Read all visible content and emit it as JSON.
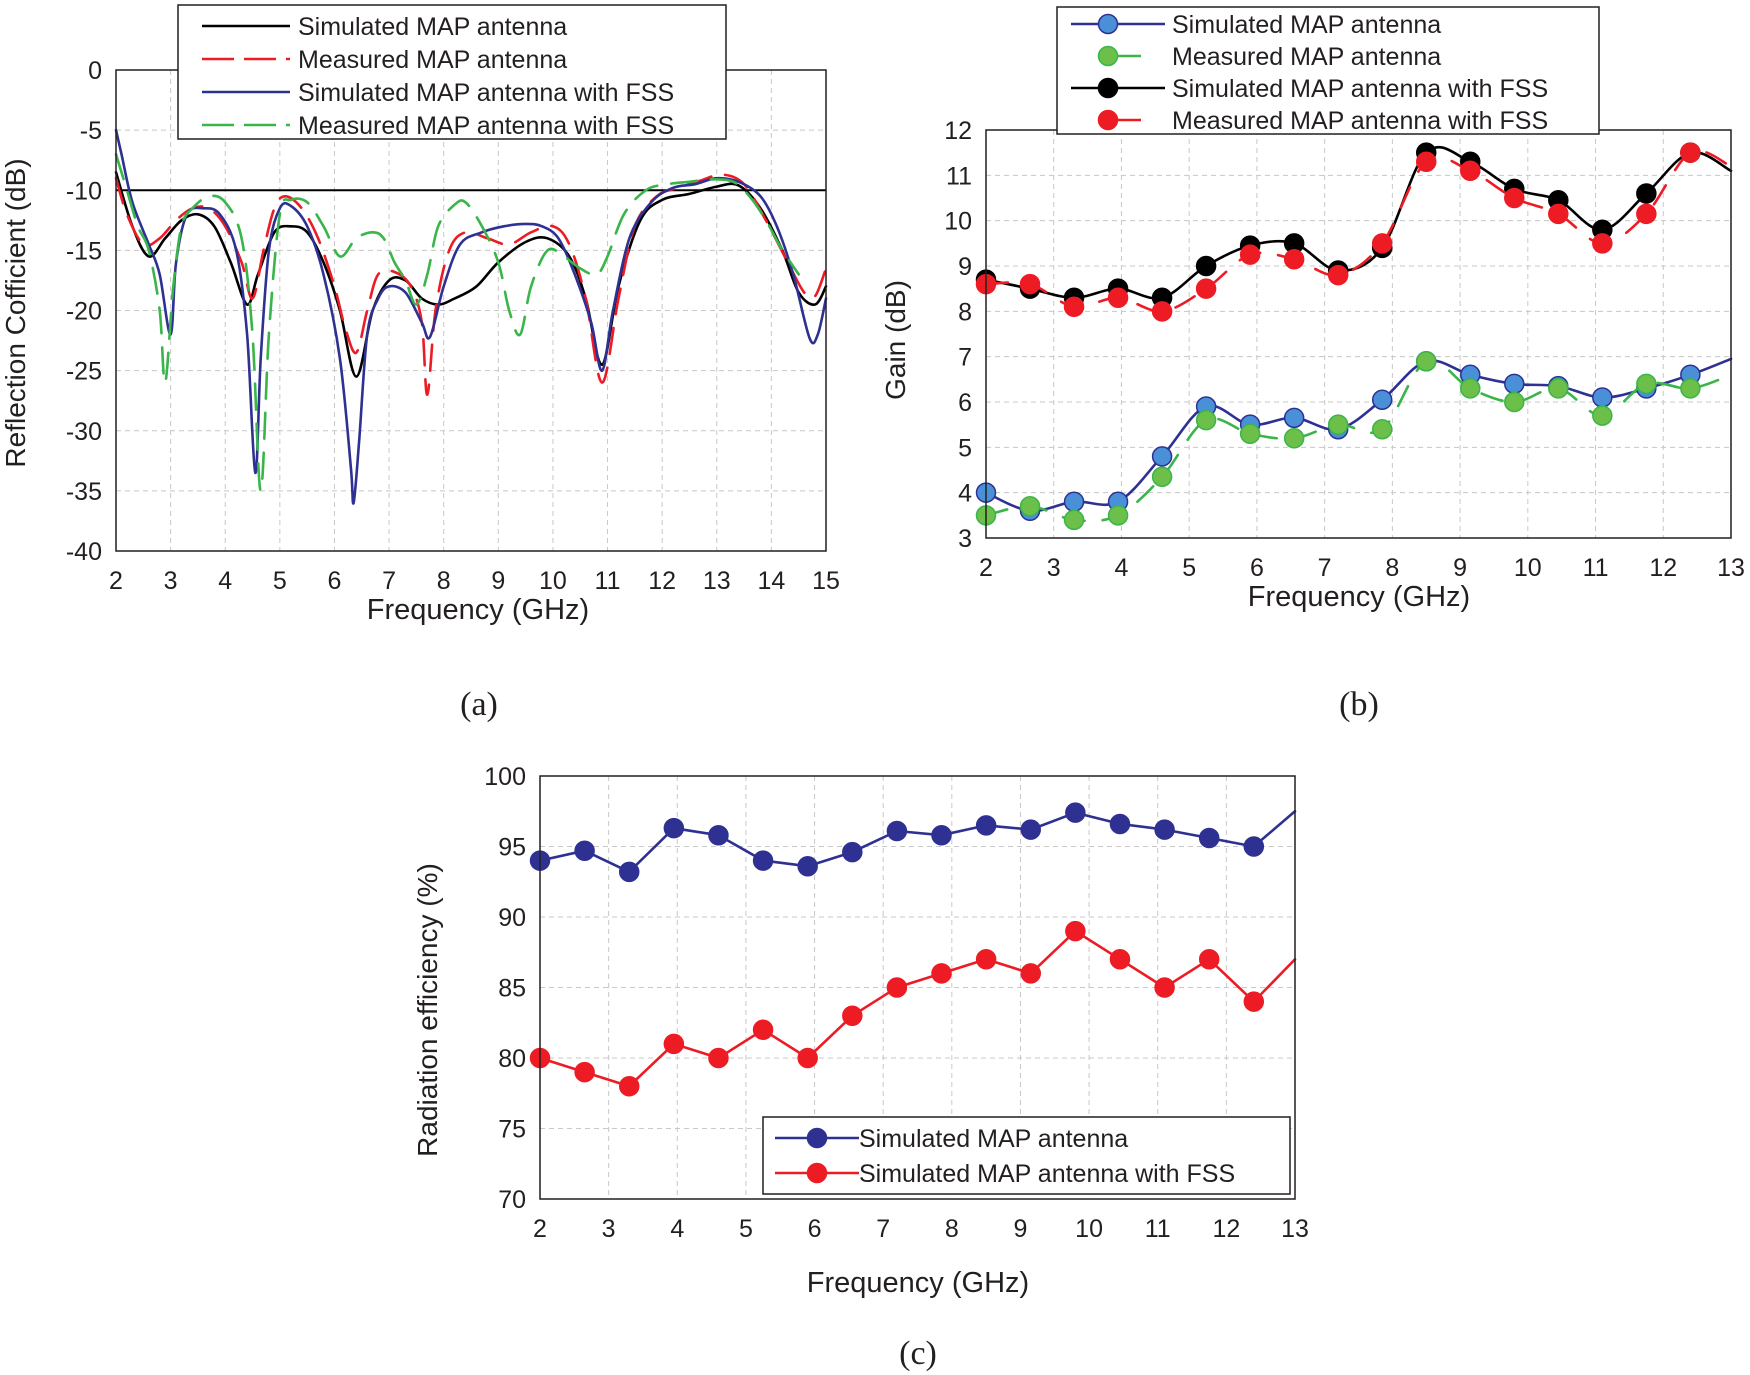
{
  "chart_data": [
    {
      "panel": "(a)",
      "type": "line",
      "title": "",
      "xlabel": "Frequency (GHz)",
      "ylabel": "Reflection Cofficient (dB)",
      "xlim": [
        2,
        15
      ],
      "ylim": [
        -40,
        0
      ],
      "xticks": [
        2,
        3,
        4,
        5,
        6,
        7,
        8,
        9,
        10,
        11,
        12,
        13,
        14,
        15
      ],
      "yticks": [
        0,
        -5,
        -10,
        -15,
        -20,
        -25,
        -30,
        -35,
        -40
      ],
      "grid": true,
      "legend_position": "top-center",
      "reference_line": {
        "y": -10,
        "color": "#000000"
      },
      "series": [
        {
          "name": "Simulated MAP antenna",
          "color": "#000000",
          "style": "solid",
          "points": [
            [
              2,
              -8.5
            ],
            [
              2.3,
              -13
            ],
            [
              2.6,
              -15.5
            ],
            [
              2.9,
              -14
            ],
            [
              3.2,
              -12.5
            ],
            [
              3.5,
              -12
            ],
            [
              3.8,
              -13
            ],
            [
              4.1,
              -16
            ],
            [
              4.4,
              -19.5
            ],
            [
              4.6,
              -17
            ],
            [
              4.9,
              -13.5
            ],
            [
              5.2,
              -13
            ],
            [
              5.5,
              -13.5
            ],
            [
              5.8,
              -16
            ],
            [
              6.1,
              -20
            ],
            [
              6.4,
              -25.5
            ],
            [
              6.7,
              -20
            ],
            [
              7,
              -17.5
            ],
            [
              7.3,
              -17.5
            ],
            [
              7.6,
              -19
            ],
            [
              7.9,
              -19.5
            ],
            [
              8.2,
              -19
            ],
            [
              8.6,
              -18
            ],
            [
              9,
              -16
            ],
            [
              9.5,
              -14.3
            ],
            [
              9.9,
              -14
            ],
            [
              10.3,
              -15.5
            ],
            [
              10.6,
              -19
            ],
            [
              10.9,
              -24.5
            ],
            [
              11.2,
              -18
            ],
            [
              11.6,
              -12.5
            ],
            [
              12,
              -10.8
            ],
            [
              12.5,
              -10.3
            ],
            [
              13,
              -9.7
            ],
            [
              13.4,
              -9.6
            ],
            [
              13.8,
              -11.5
            ],
            [
              14.2,
              -15
            ],
            [
              14.5,
              -18.5
            ],
            [
              14.8,
              -19.5
            ],
            [
              15,
              -18
            ]
          ]
        },
        {
          "name": "Measured MAP antenna",
          "color": "#ed1c24",
          "style": "dashed",
          "points": [
            [
              2,
              -9
            ],
            [
              2.2,
              -12
            ],
            [
              2.5,
              -14.5
            ],
            [
              2.8,
              -14
            ],
            [
              3.1,
              -12.5
            ],
            [
              3.4,
              -11.5
            ],
            [
              3.7,
              -11.5
            ],
            [
              4,
              -13
            ],
            [
              4.3,
              -16
            ],
            [
              4.5,
              -19
            ],
            [
              4.7,
              -15
            ],
            [
              4.9,
              -11.5
            ],
            [
              5.1,
              -10.5
            ],
            [
              5.4,
              -11.5
            ],
            [
              5.7,
              -14
            ],
            [
              6,
              -18
            ],
            [
              6.2,
              -21.5
            ],
            [
              6.4,
              -23.5
            ],
            [
              6.6,
              -20
            ],
            [
              6.8,
              -17
            ],
            [
              7.1,
              -16.8
            ],
            [
              7.4,
              -18
            ],
            [
              7.6,
              -21
            ],
            [
              7.7,
              -27
            ],
            [
              7.85,
              -20
            ],
            [
              8.1,
              -15
            ],
            [
              8.4,
              -13.5
            ],
            [
              8.8,
              -14
            ],
            [
              9.2,
              -14.5
            ],
            [
              9.6,
              -13.5
            ],
            [
              10,
              -13
            ],
            [
              10.3,
              -14.5
            ],
            [
              10.6,
              -19
            ],
            [
              10.9,
              -26
            ],
            [
              11.2,
              -19
            ],
            [
              11.5,
              -13
            ],
            [
              11.9,
              -10.5
            ],
            [
              12.3,
              -9.8
            ],
            [
              12.7,
              -9.2
            ],
            [
              13.1,
              -8.7
            ],
            [
              13.5,
              -9.5
            ],
            [
              13.9,
              -12.5
            ],
            [
              14.3,
              -16
            ],
            [
              14.6,
              -18.5
            ],
            [
              14.8,
              -18.8
            ],
            [
              15,
              -16.5
            ]
          ]
        },
        {
          "name": "Simulated MAP antenna with FSS",
          "color": "#2e3192",
          "style": "solid",
          "points": [
            [
              2,
              -5
            ],
            [
              2.1,
              -7
            ],
            [
              2.3,
              -11
            ],
            [
              2.6,
              -14.5
            ],
            [
              2.8,
              -17
            ],
            [
              3,
              -22
            ],
            [
              3.1,
              -16
            ],
            [
              3.3,
              -12
            ],
            [
              3.6,
              -11.5
            ],
            [
              3.9,
              -12
            ],
            [
              4.2,
              -15
            ],
            [
              4.4,
              -22
            ],
            [
              4.55,
              -33.5
            ],
            [
              4.65,
              -24
            ],
            [
              4.8,
              -15
            ],
            [
              5,
              -11.5
            ],
            [
              5.2,
              -11.3
            ],
            [
              5.5,
              -13
            ],
            [
              5.8,
              -17
            ],
            [
              6.1,
              -24
            ],
            [
              6.3,
              -33
            ],
            [
              6.35,
              -36
            ],
            [
              6.45,
              -31
            ],
            [
              6.6,
              -22
            ],
            [
              6.8,
              -19
            ],
            [
              7,
              -18
            ],
            [
              7.3,
              -18.5
            ],
            [
              7.6,
              -21
            ],
            [
              7.75,
              -22.2
            ],
            [
              8,
              -18
            ],
            [
              8.3,
              -14.5
            ],
            [
              8.7,
              -13.5
            ],
            [
              9.1,
              -13
            ],
            [
              9.5,
              -12.8
            ],
            [
              9.8,
              -13
            ],
            [
              10.1,
              -14
            ],
            [
              10.4,
              -17
            ],
            [
              10.7,
              -21
            ],
            [
              10.9,
              -25
            ],
            [
              11.1,
              -20
            ],
            [
              11.4,
              -14
            ],
            [
              11.8,
              -11
            ],
            [
              12.2,
              -9.8
            ],
            [
              12.6,
              -9.5
            ],
            [
              13,
              -9
            ],
            [
              13.4,
              -9.3
            ],
            [
              13.8,
              -10.5
            ],
            [
              14.1,
              -13
            ],
            [
              14.4,
              -17
            ],
            [
              14.7,
              -22.3
            ],
            [
              14.85,
              -22
            ],
            [
              15,
              -19
            ]
          ]
        },
        {
          "name": "Measured MAP antenna with FSS",
          "color": "#39b54a",
          "style": "dashed",
          "points": [
            [
              2,
              -7
            ],
            [
              2.2,
              -10
            ],
            [
              2.4,
              -13
            ],
            [
              2.6,
              -15
            ],
            [
              2.8,
              -20
            ],
            [
              2.9,
              -26
            ],
            [
              3.05,
              -18
            ],
            [
              3.2,
              -13
            ],
            [
              3.4,
              -11.5
            ],
            [
              3.7,
              -10.5
            ],
            [
              4,
              -11
            ],
            [
              4.3,
              -14
            ],
            [
              4.5,
              -22
            ],
            [
              4.65,
              -35
            ],
            [
              4.8,
              -22
            ],
            [
              5,
              -12
            ],
            [
              5.2,
              -10.8
            ],
            [
              5.5,
              -11
            ],
            [
              5.8,
              -13
            ],
            [
              6.1,
              -15.5
            ],
            [
              6.4,
              -14
            ],
            [
              6.7,
              -13.5
            ],
            [
              6.9,
              -14
            ],
            [
              7.1,
              -16
            ],
            [
              7.3,
              -17.5
            ],
            [
              7.5,
              -19.5
            ],
            [
              7.7,
              -17
            ],
            [
              7.9,
              -13
            ],
            [
              8.2,
              -11.2
            ],
            [
              8.4,
              -11
            ],
            [
              8.7,
              -13
            ],
            [
              9,
              -16
            ],
            [
              9.2,
              -20
            ],
            [
              9.4,
              -22
            ],
            [
              9.6,
              -18
            ],
            [
              9.9,
              -15
            ],
            [
              10.2,
              -15.5
            ],
            [
              10.5,
              -16.5
            ],
            [
              10.8,
              -17
            ],
            [
              11,
              -15.5
            ],
            [
              11.3,
              -12
            ],
            [
              11.7,
              -10
            ],
            [
              12.1,
              -9.5
            ],
            [
              12.5,
              -9.3
            ],
            [
              12.9,
              -9.1
            ],
            [
              13.3,
              -9.3
            ],
            [
              13.6,
              -10.5
            ],
            [
              13.9,
              -12.5
            ],
            [
              14.2,
              -15
            ],
            [
              14.35,
              -16
            ],
            [
              14.5,
              -17
            ]
          ]
        }
      ]
    },
    {
      "panel": "(b)",
      "type": "line",
      "title": "",
      "xlabel": "Frequency (GHz)",
      "ylabel": "Gain (dB)",
      "xlim": [
        2,
        13
      ],
      "ylim": [
        3,
        12
      ],
      "xticks": [
        2,
        3,
        4,
        5,
        6,
        7,
        8,
        9,
        10,
        11,
        12,
        13
      ],
      "yticks": [
        3,
        4,
        5,
        6,
        7,
        8,
        9,
        10,
        11,
        12
      ],
      "grid": true,
      "legend_position": "top-center",
      "x": [
        2,
        2.65,
        3.3,
        3.95,
        4.6,
        5.25,
        5.9,
        6.55,
        7.2,
        7.85,
        8.5,
        9.15,
        9.8,
        10.45,
        11.1,
        11.75,
        12.4,
        13
      ],
      "series": [
        {
          "name": "Simulated MAP antenna",
          "color": "#2e3192",
          "marker_fill": "#4a90d9",
          "style": "solid",
          "values": [
            4.0,
            3.6,
            3.8,
            3.8,
            4.8,
            5.9,
            5.5,
            5.65,
            5.4,
            6.05,
            6.9,
            6.6,
            6.4,
            6.35,
            6.1,
            6.3,
            6.6,
            6.95
          ]
        },
        {
          "name": "Measured MAP antenna",
          "color": "#39b54a",
          "marker_fill": "#6cc04a",
          "style": "dashed",
          "values": [
            3.5,
            3.7,
            3.4,
            3.5,
            4.35,
            5.6,
            5.3,
            5.2,
            5.5,
            5.4,
            6.9,
            6.3,
            6.0,
            6.3,
            5.7,
            6.4,
            6.3,
            6.6
          ]
        },
        {
          "name": "Simulated MAP antenna with FSS",
          "color": "#000000",
          "marker_fill": "#000000",
          "style": "solid",
          "values": [
            8.7,
            8.5,
            8.3,
            8.5,
            8.3,
            9.0,
            9.45,
            9.5,
            8.9,
            9.4,
            11.5,
            11.3,
            10.7,
            10.45,
            9.8,
            10.6,
            11.5,
            11.1
          ]
        },
        {
          "name": "Measured MAP antenna with FSS",
          "color": "#ed1c24",
          "marker_fill": "#ed1c24",
          "style": "dashed",
          "values": [
            8.6,
            8.6,
            8.1,
            8.3,
            8.0,
            8.5,
            9.25,
            9.15,
            8.8,
            9.5,
            11.3,
            11.1,
            10.5,
            10.15,
            9.5,
            10.15,
            11.5,
            11.2
          ]
        }
      ]
    },
    {
      "panel": "(c)",
      "type": "line",
      "title": "",
      "xlabel": "Frequency (GHz)",
      "ylabel": "Radiation efficiency (%)",
      "xlim": [
        2,
        13
      ],
      "ylim": [
        70,
        100
      ],
      "xticks": [
        2,
        3,
        4,
        5,
        6,
        7,
        8,
        9,
        10,
        11,
        12,
        13
      ],
      "yticks": [
        70,
        75,
        80,
        85,
        90,
        95,
        100
      ],
      "grid": true,
      "legend_position": "bottom-right",
      "x": [
        2,
        2.65,
        3.3,
        3.95,
        4.6,
        5.25,
        5.9,
        6.55,
        7.2,
        7.85,
        8.5,
        9.15,
        9.8,
        10.45,
        11.1,
        11.75,
        12.4,
        13
      ],
      "series": [
        {
          "name": "Simulated MAP antenna",
          "color": "#2e3192",
          "marker_fill": "#2e3192",
          "style": "solid",
          "values": [
            94.0,
            94.7,
            93.2,
            96.3,
            95.8,
            94.0,
            93.6,
            94.6,
            96.1,
            95.8,
            96.5,
            96.2,
            97.4,
            96.6,
            96.2,
            95.6,
            95.0,
            97.5
          ]
        },
        {
          "name": "Simulated MAP antenna with FSS",
          "color": "#ed1c24",
          "marker_fill": "#ed1c24",
          "style": "solid",
          "values": [
            80,
            79,
            78,
            81,
            80,
            82,
            80,
            83,
            85,
            86,
            87,
            86,
            89,
            87,
            85,
            87,
            84,
            87
          ]
        }
      ]
    }
  ],
  "captions": {
    "a": "(a)",
    "b": "(b)",
    "c": "(c)"
  }
}
